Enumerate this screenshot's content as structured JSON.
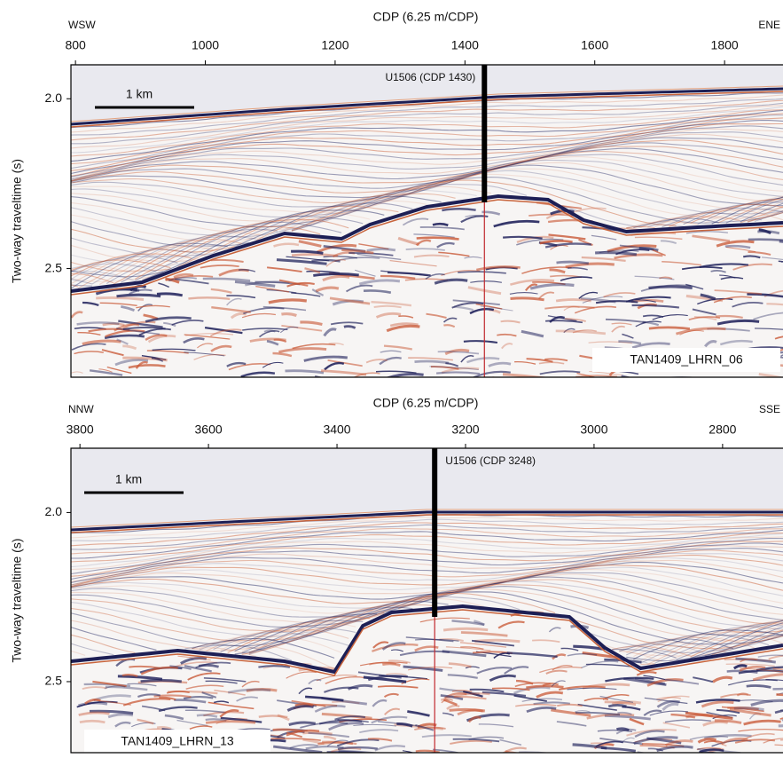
{
  "chart_data": [
    {
      "type": "seismic",
      "title": "CDP (6.25 m/CDP)",
      "y_label": "Two-way traveltime (s)",
      "left_direction": "WSW",
      "right_direction": "ENE",
      "line_name": "TAN1409_LHRN_06",
      "scale_bar": "1 km",
      "well": {
        "label": "U1506 (CDP 1430)",
        "cdp": 1430
      },
      "xlim": [
        793,
        1890
      ],
      "xticks": [
        800,
        1000,
        1200,
        1400,
        1600,
        1800
      ],
      "ylim": [
        1.9,
        2.82
      ],
      "y_inverted": true,
      "yticks": [
        {
          "value": 2,
          "label": "2.0"
        },
        {
          "value": 2.5,
          "label": "2.5"
        }
      ]
    },
    {
      "type": "seismic",
      "title": "CDP (6.25 m/CDP)",
      "y_label": "Two-way traveltime (s)",
      "left_direction": "NNW",
      "right_direction": "SSE",
      "line_name": "TAN1409_LHRN_13",
      "scale_bar": "1 km",
      "well": {
        "label": "U1506 (CDP 3248)",
        "cdp": 3248
      },
      "xlim": [
        3814,
        2706
      ],
      "xticks": [
        3800,
        3600,
        3400,
        3200,
        3000,
        2800
      ],
      "ylim": [
        1.81,
        2.71
      ],
      "y_inverted": true,
      "yticks": [
        {
          "value": 2,
          "label": "2.0"
        },
        {
          "value": 2.5,
          "label": "2.5"
        }
      ]
    }
  ]
}
